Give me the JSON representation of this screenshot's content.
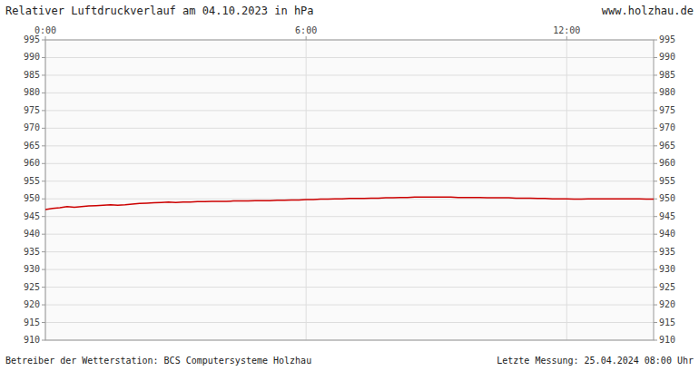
{
  "chart_data": {
    "type": "line",
    "title": "Relativer Luftdruckverlauf am 04.10.2023 in hPa",
    "subtitle": "www.holzhau.de",
    "annotations": [
      "Betreiber der Wetterstation: BCS Computersysteme Holzhau",
      "Letzte Messung: 25.04.2024 08:00 Uhr"
    ],
    "color": "#cc0000",
    "grid": true,
    "xlim": [
      0,
      14.0
    ],
    "xticks": [
      {
        "value": 0,
        "label": "0:00"
      },
      {
        "value": 6,
        "label": "6:00"
      },
      {
        "value": 12,
        "label": "12:00"
      }
    ],
    "ylim": [
      910,
      995
    ],
    "yticks": [
      910,
      915,
      920,
      925,
      930,
      935,
      940,
      945,
      950,
      955,
      960,
      965,
      970,
      975,
      980,
      985,
      990,
      995
    ],
    "x": [
      0,
      0.166666666666667,
      0.333333333333333,
      0.5,
      0.666666666666667,
      0.833333333333333,
      1,
      1.166666666666667,
      1.333333333333333,
      1.5,
      1.666666666666667,
      1.833333333333333,
      2,
      2.166666666666667,
      2.333333333333333,
      2.5,
      2.666666666666667,
      2.833333333333333,
      3,
      3.166666666666667,
      3.333333333333333,
      3.5,
      3.666666666666667,
      3.833333333333333,
      4,
      4.166666666666667,
      4.333333333333333,
      4.5,
      4.666666666666667,
      4.833333333333333,
      5,
      5.166666666666667,
      5.333333333333333,
      5.5,
      5.666666666666667,
      5.833333333333333,
      6,
      6.166666666666667,
      6.333333333333333,
      6.5,
      6.666666666666667,
      6.833333333333333,
      7,
      7.166666666666667,
      7.333333333333333,
      7.5,
      7.666666666666667,
      7.833333333333333,
      8,
      8.166666666666668,
      8.333333333333332,
      8.5,
      8.666666666666668,
      8.833333333333332,
      9,
      9.166666666666668,
      9.333333333333332,
      9.5,
      9.666666666666668,
      9.833333333333332,
      10,
      10.166666666666668,
      10.333333333333332,
      10.5,
      10.666666666666668,
      10.833333333333332,
      11,
      11.166666666666668,
      11.333333333333332,
      11.5,
      11.666666666666668,
      11.833333333333332,
      12,
      12.166666666666668,
      12.333333333333332,
      12.5,
      12.666666666666668,
      12.833333333333332,
      13,
      13.166666666666668,
      13.333333333333332,
      13.5,
      13.666666666666668,
      13.833333333333332,
      14
    ],
    "values": [
      947.0,
      947.3,
      947.5,
      947.8,
      947.6,
      947.8,
      948.0,
      948.1,
      948.2,
      948.3,
      948.2,
      948.3,
      948.5,
      948.7,
      948.8,
      948.9,
      949.0,
      949.1,
      949.0,
      949.1,
      949.1,
      949.2,
      949.2,
      949.3,
      949.3,
      949.3,
      949.4,
      949.4,
      949.4,
      949.5,
      949.5,
      949.5,
      949.6,
      949.6,
      949.7,
      949.7,
      949.8,
      949.8,
      949.9,
      949.9,
      950.0,
      950.0,
      950.1,
      950.1,
      950.1,
      950.2,
      950.2,
      950.3,
      950.3,
      950.4,
      950.4,
      950.5,
      950.5,
      950.5,
      950.5,
      950.5,
      950.5,
      950.4,
      950.4,
      950.4,
      950.4,
      950.3,
      950.3,
      950.3,
      950.3,
      950.2,
      950.2,
      950.2,
      950.1,
      950.1,
      950.0,
      950.0,
      950.0,
      949.9,
      949.9,
      950.0,
      950.0,
      950.0,
      950.0,
      950.0,
      950.0,
      950.0,
      950.0,
      949.9,
      949.9
    ]
  }
}
